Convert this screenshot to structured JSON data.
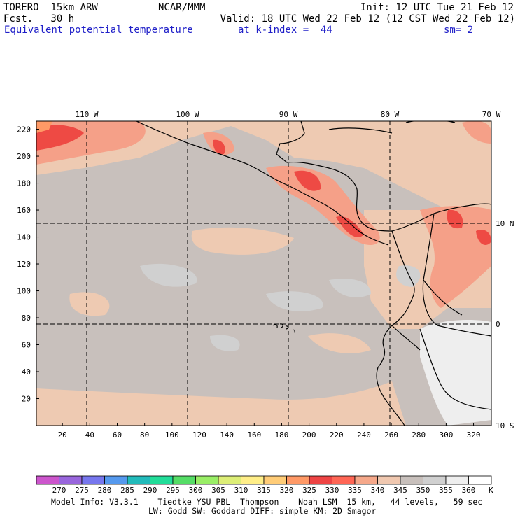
{
  "header": {
    "model": "TORERO  15km ARW",
    "org": "NCAR/MMM",
    "init": "Init: 12 UTC Tue 21 Feb 12",
    "fcst": "Fcst.   30 h",
    "valid": "Valid: 18 UTC Wed 22 Feb 12 (12 CST Wed 22 Feb 12)",
    "field": "Equivalent potential temperature",
    "kindex": "at k-index =  44",
    "smooth": "sm= 2"
  },
  "colors": {
    "grid": "#000000",
    "land_outline": "#000000",
    "header_blue": "#1f1fc8"
  },
  "axes": {
    "lon_labels": [
      "110 W",
      "100 W",
      "90 W",
      "80 W",
      "70 W"
    ],
    "lat_labels": [
      "10 N",
      "0",
      "10 S"
    ],
    "y_ticks": [
      "20",
      "40",
      "60",
      "80",
      "100",
      "120",
      "140",
      "160",
      "180",
      "200",
      "220"
    ],
    "x_ticks": [
      "20",
      "40",
      "60",
      "80",
      "100",
      "120",
      "140",
      "160",
      "180",
      "200",
      "220",
      "240",
      "260",
      "280",
      "300",
      "320"
    ]
  },
  "colorbar": {
    "labels": [
      "270",
      "275",
      "280",
      "285",
      "290",
      "295",
      "300",
      "305",
      "310",
      "315",
      "320",
      "325",
      "330",
      "335",
      "340",
      "345",
      "350",
      "355",
      "360"
    ],
    "unit": "K",
    "colors": [
      "#cc55cc",
      "#9966dd",
      "#7777ee",
      "#5599ee",
      "#22bbbb",
      "#22dd99",
      "#55dd66",
      "#99ee66",
      "#ddee77",
      "#ffee88",
      "#ffcc77",
      "#ff9966",
      "#ee4444",
      "#ff6655",
      "#f5a88a",
      "#f0c8b0",
      "#c8c0bc",
      "#d0d0d0",
      "#eeeeee",
      "#ffffff"
    ]
  },
  "footer": {
    "line1": "Model Info: V3.3.1    Tiedtke YSU PBL  Thompson    Noah LSM  15 km,   44 levels,   59 sec",
    "line2": "LW: Godd SW: Goddard DIFF: simple KM: 2D Smagor"
  }
}
